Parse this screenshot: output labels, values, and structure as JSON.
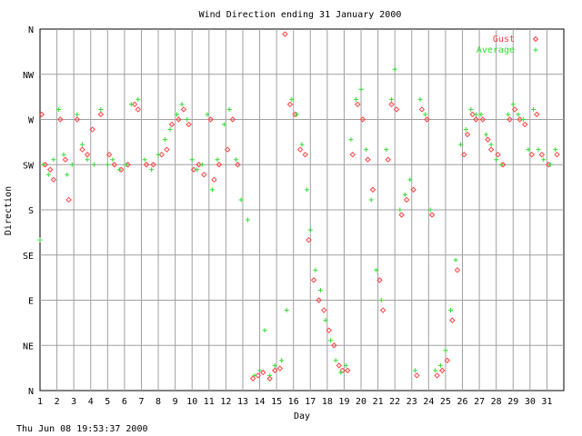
{
  "chart_data": {
    "type": "scatter",
    "title": "Wind Direction ending 31 January 2000",
    "xlabel": "Day",
    "ylabel": "Direction",
    "timestamp": "Thu Jun 08 19:53:37 2000",
    "xlim": [
      1,
      32
    ],
    "ylim": [
      0,
      360
    ],
    "grid": true,
    "legend_position": "top-right",
    "x_ticks": [
      "1",
      "2",
      "3",
      "4",
      "5",
      "6",
      "7",
      "8",
      "9",
      "10",
      "11",
      "12",
      "13",
      "14",
      "15",
      "16",
      "17",
      "18",
      "19",
      "20",
      "21",
      "22",
      "23",
      "24",
      "25",
      "26",
      "27",
      "28",
      "29",
      "30",
      "31"
    ],
    "y_ticks": [
      {
        "label": "N",
        "value": 0
      },
      {
        "label": "NE",
        "value": 45
      },
      {
        "label": "E",
        "value": 90
      },
      {
        "label": "SE",
        "value": 135
      },
      {
        "label": "S",
        "value": 180
      },
      {
        "label": "SW",
        "value": 225
      },
      {
        "label": "W",
        "value": 270
      },
      {
        "label": "NW",
        "value": 315
      },
      {
        "label": "N",
        "value": 360
      }
    ],
    "colors": {
      "gust": "#ff4040",
      "average": "#33dd33",
      "grid": "#a0a0a0",
      "axis": "#000000"
    },
    "series": [
      {
        "name": "Gust",
        "marker": "diamond",
        "points": [
          [
            1.1,
            275
          ],
          [
            1.3,
            225
          ],
          [
            1.6,
            220
          ],
          [
            1.8,
            210
          ],
          [
            2.2,
            270
          ],
          [
            2.5,
            230
          ],
          [
            2.7,
            190
          ],
          [
            3.2,
            270
          ],
          [
            3.5,
            240
          ],
          [
            3.8,
            235
          ],
          [
            4.1,
            260
          ],
          [
            4.6,
            275
          ],
          [
            5.1,
            235
          ],
          [
            5.4,
            225
          ],
          [
            5.8,
            220
          ],
          [
            6.2,
            225
          ],
          [
            6.6,
            285
          ],
          [
            6.8,
            280
          ],
          [
            7.3,
            225
          ],
          [
            7.7,
            225
          ],
          [
            8.2,
            235
          ],
          [
            8.5,
            240
          ],
          [
            8.8,
            265
          ],
          [
            9.2,
            270
          ],
          [
            9.5,
            280
          ],
          [
            9.8,
            265
          ],
          [
            10.1,
            220
          ],
          [
            10.4,
            225
          ],
          [
            10.7,
            215
          ],
          [
            11.1,
            270
          ],
          [
            11.3,
            210
          ],
          [
            11.6,
            225
          ],
          [
            12.1,
            240
          ],
          [
            12.4,
            270
          ],
          [
            12.7,
            225
          ],
          [
            13.6,
            12
          ],
          [
            13.9,
            15
          ],
          [
            14.2,
            18
          ],
          [
            14.6,
            12
          ],
          [
            14.9,
            20
          ],
          [
            15.2,
            22
          ],
          [
            15.5,
            355
          ],
          [
            15.8,
            285
          ],
          [
            16.1,
            275
          ],
          [
            16.4,
            240
          ],
          [
            16.7,
            235
          ],
          [
            16.9,
            150
          ],
          [
            17.2,
            110
          ],
          [
            17.5,
            90
          ],
          [
            17.8,
            80
          ],
          [
            18.1,
            60
          ],
          [
            18.4,
            45
          ],
          [
            18.7,
            25
          ],
          [
            18.9,
            20
          ],
          [
            19.2,
            20
          ],
          [
            19.5,
            235
          ],
          [
            19.8,
            285
          ],
          [
            20.1,
            270
          ],
          [
            20.4,
            230
          ],
          [
            20.7,
            200
          ],
          [
            21.1,
            110
          ],
          [
            21.3,
            80
          ],
          [
            21.6,
            230
          ],
          [
            21.8,
            285
          ],
          [
            22.1,
            280
          ],
          [
            22.4,
            175
          ],
          [
            22.7,
            190
          ],
          [
            23.1,
            200
          ],
          [
            23.3,
            15
          ],
          [
            23.6,
            280
          ],
          [
            23.9,
            270
          ],
          [
            24.2,
            175
          ],
          [
            24.5,
            15
          ],
          [
            24.8,
            20
          ],
          [
            25.1,
            30
          ],
          [
            25.4,
            70
          ],
          [
            25.7,
            120
          ],
          [
            26.1,
            235
          ],
          [
            26.3,
            255
          ],
          [
            26.6,
            275
          ],
          [
            26.8,
            270
          ],
          [
            27.2,
            270
          ],
          [
            27.5,
            250
          ],
          [
            27.7,
            240
          ],
          [
            28.1,
            235
          ],
          [
            28.4,
            225
          ],
          [
            28.8,
            270
          ],
          [
            29.1,
            280
          ],
          [
            29.4,
            270
          ],
          [
            29.7,
            265
          ],
          [
            30.1,
            235
          ],
          [
            30.4,
            275
          ],
          [
            30.7,
            235
          ],
          [
            31.1,
            225
          ],
          [
            31.6,
            235
          ]
        ]
      },
      {
        "name": "Average",
        "marker": "plus",
        "points": [
          [
            1.0,
            150
          ],
          [
            1.2,
            225
          ],
          [
            1.5,
            215
          ],
          [
            1.8,
            230
          ],
          [
            2.1,
            280
          ],
          [
            2.4,
            235
          ],
          [
            2.6,
            215
          ],
          [
            2.9,
            225
          ],
          [
            3.2,
            275
          ],
          [
            3.5,
            245
          ],
          [
            3.8,
            230
          ],
          [
            4.2,
            225
          ],
          [
            4.6,
            280
          ],
          [
            5.0,
            225
          ],
          [
            5.3,
            230
          ],
          [
            5.7,
            220
          ],
          [
            6.1,
            225
          ],
          [
            6.4,
            285
          ],
          [
            6.8,
            290
          ],
          [
            7.2,
            230
          ],
          [
            7.6,
            220
          ],
          [
            8.0,
            235
          ],
          [
            8.4,
            250
          ],
          [
            8.7,
            260
          ],
          [
            9.1,
            275
          ],
          [
            9.4,
            285
          ],
          [
            9.7,
            270
          ],
          [
            10.0,
            230
          ],
          [
            10.3,
            220
          ],
          [
            10.6,
            225
          ],
          [
            10.9,
            275
          ],
          [
            11.2,
            200
          ],
          [
            11.5,
            230
          ],
          [
            11.9,
            265
          ],
          [
            12.2,
            280
          ],
          [
            12.6,
            230
          ],
          [
            12.9,
            190
          ],
          [
            13.3,
            170
          ],
          [
            13.7,
            15
          ],
          [
            14.0,
            20
          ],
          [
            14.3,
            60
          ],
          [
            14.6,
            15
          ],
          [
            14.9,
            25
          ],
          [
            15.3,
            30
          ],
          [
            15.6,
            80
          ],
          [
            15.9,
            290
          ],
          [
            16.2,
            275
          ],
          [
            16.5,
            245
          ],
          [
            16.8,
            200
          ],
          [
            17.0,
            160
          ],
          [
            17.3,
            120
          ],
          [
            17.6,
            100
          ],
          [
            17.9,
            70
          ],
          [
            18.2,
            50
          ],
          [
            18.5,
            30
          ],
          [
            18.8,
            18
          ],
          [
            19.1,
            25
          ],
          [
            19.4,
            250
          ],
          [
            19.7,
            290
          ],
          [
            20.0,
            300
          ],
          [
            20.3,
            240
          ],
          [
            20.6,
            190
          ],
          [
            20.9,
            120
          ],
          [
            21.2,
            90
          ],
          [
            21.5,
            240
          ],
          [
            21.8,
            290
          ],
          [
            22.0,
            320
          ],
          [
            22.3,
            180
          ],
          [
            22.6,
            195
          ],
          [
            22.9,
            210
          ],
          [
            23.2,
            20
          ],
          [
            23.5,
            290
          ],
          [
            23.8,
            275
          ],
          [
            24.1,
            180
          ],
          [
            24.4,
            20
          ],
          [
            24.7,
            25
          ],
          [
            25.0,
            40
          ],
          [
            25.3,
            80
          ],
          [
            25.6,
            130
          ],
          [
            25.9,
            245
          ],
          [
            26.2,
            260
          ],
          [
            26.5,
            280
          ],
          [
            26.8,
            275
          ],
          [
            27.1,
            275
          ],
          [
            27.4,
            255
          ],
          [
            27.7,
            245
          ],
          [
            28.0,
            230
          ],
          [
            28.3,
            225
          ],
          [
            28.7,
            275
          ],
          [
            29.0,
            285
          ],
          [
            29.3,
            275
          ],
          [
            29.6,
            270
          ],
          [
            29.9,
            240
          ],
          [
            30.2,
            280
          ],
          [
            30.5,
            240
          ],
          [
            30.8,
            230
          ],
          [
            31.2,
            225
          ],
          [
            31.5,
            240
          ]
        ]
      }
    ]
  }
}
